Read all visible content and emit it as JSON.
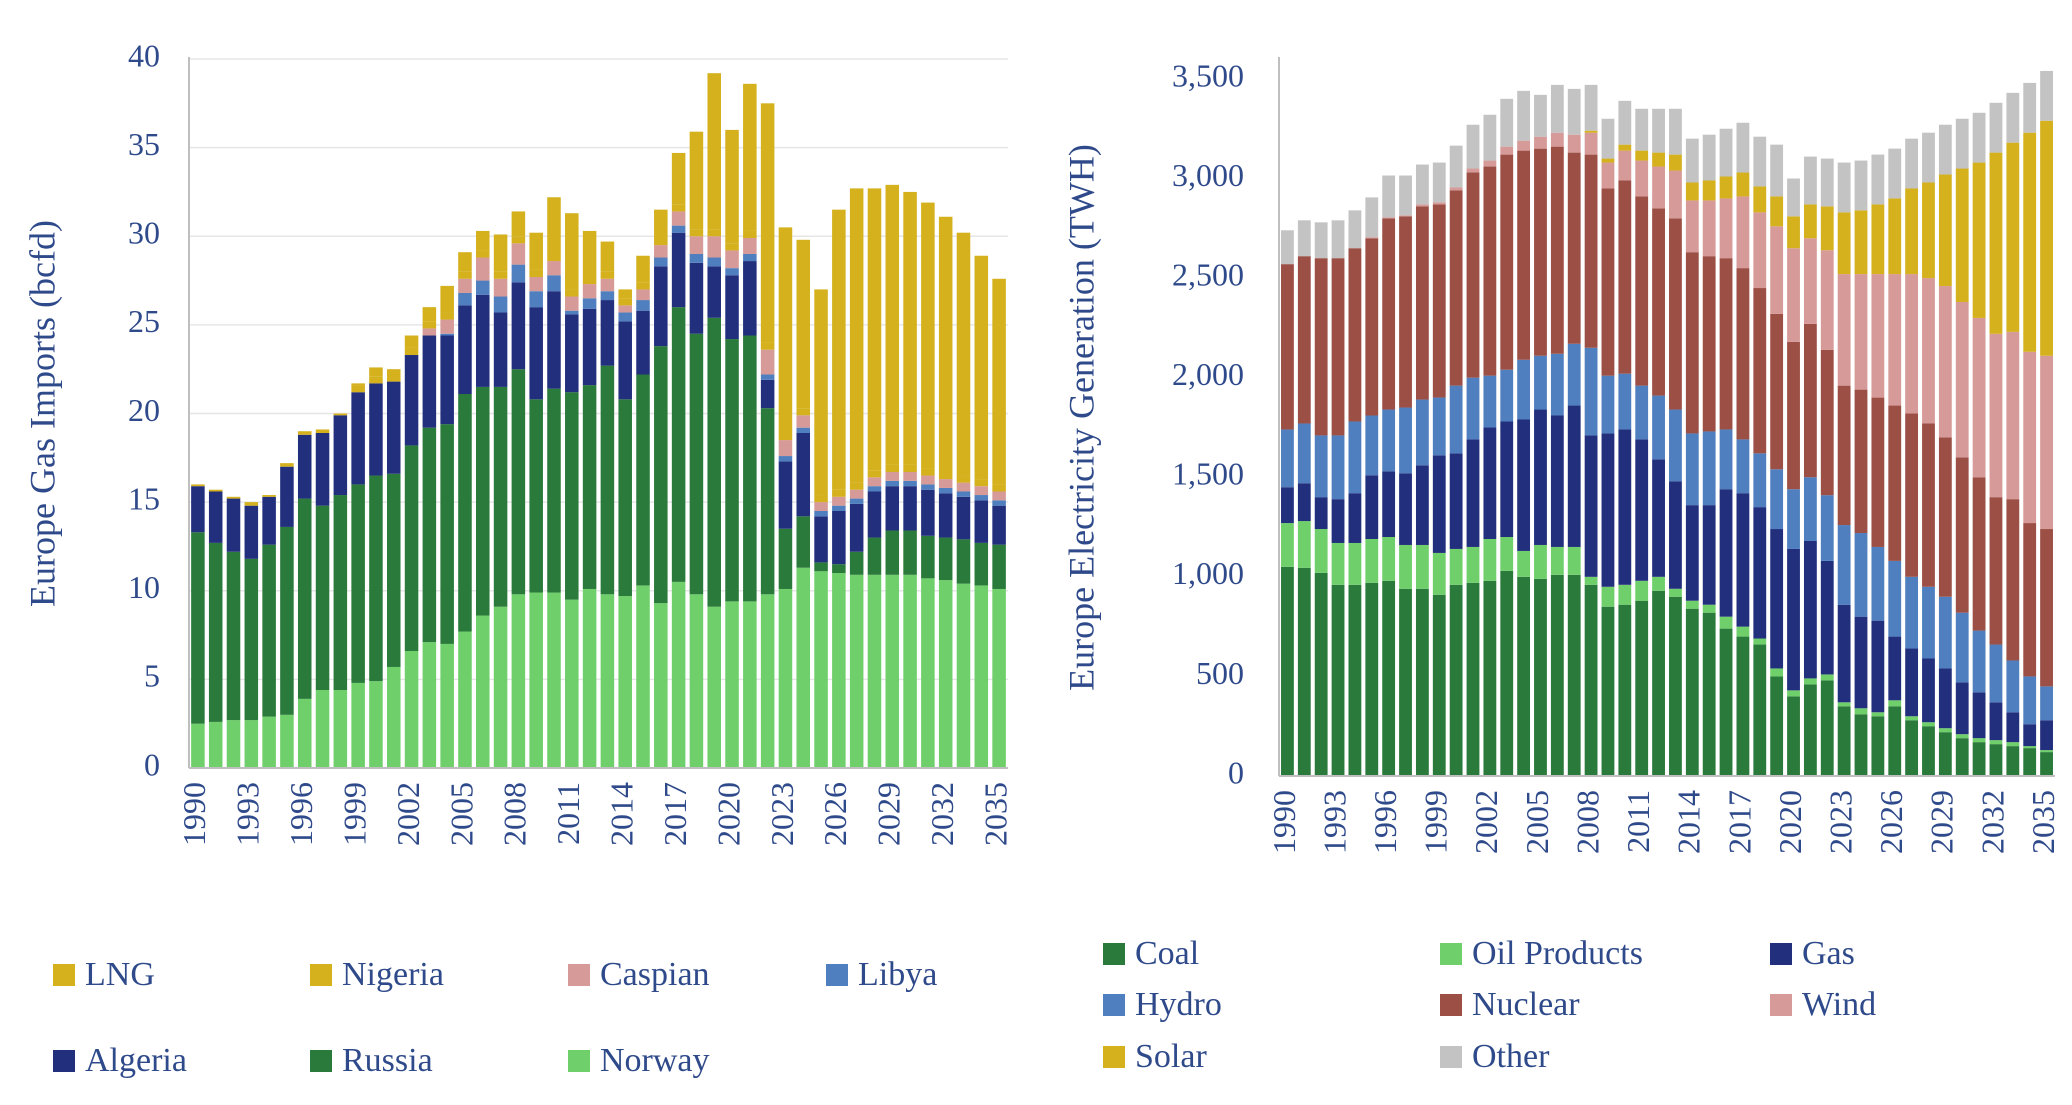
{
  "chart_data": [
    {
      "type": "bar",
      "stacked": true,
      "y_label": "Europe Gas Imports (bcfd)",
      "categories": [
        "1990",
        null,
        null,
        "1993",
        null,
        null,
        "1996",
        null,
        null,
        "1999",
        null,
        null,
        "2002",
        null,
        null,
        "2005",
        null,
        null,
        "2008",
        null,
        null,
        "2011",
        null,
        null,
        "2014",
        null,
        null,
        "2017",
        null,
        null,
        "2020",
        null,
        null,
        "2023",
        null,
        null,
        "2026",
        null,
        null,
        "2029",
        null,
        null,
        "2032",
        null,
        null,
        "2035"
      ],
      "ylim": [
        0,
        40
      ],
      "yticks": [
        0,
        5,
        10,
        15,
        20,
        25,
        30,
        35,
        40
      ],
      "grid": true,
      "legend": "bottom",
      "series": [
        {
          "name": "Norway",
          "color": "#6fcf6a",
          "values": [
            2.5,
            2.6,
            2.7,
            2.7,
            2.9,
            3.0,
            3.9,
            4.4,
            4.4,
            4.8,
            4.9,
            5.7,
            6.6,
            7.1,
            7.0,
            7.7,
            8.6,
            9.1,
            9.8,
            9.9,
            9.9,
            9.5,
            10.1,
            9.8,
            9.7,
            10.3,
            9.3,
            10.5,
            9.8,
            9.1,
            9.4,
            9.4,
            9.8,
            10.1,
            11.3,
            11.1,
            11.0,
            10.9,
            10.9,
            10.9,
            10.9,
            10.7,
            10.6,
            10.4,
            10.3,
            10.1
          ]
        },
        {
          "name": "Russia",
          "color": "#2a7a3b",
          "values": [
            10.8,
            10.1,
            9.5,
            9.1,
            9.7,
            10.6,
            11.3,
            10.4,
            11.0,
            11.2,
            11.6,
            10.9,
            11.6,
            12.1,
            12.4,
            13.4,
            12.9,
            12.4,
            12.7,
            10.9,
            11.5,
            11.7,
            11.5,
            12.9,
            11.1,
            11.9,
            14.5,
            15.5,
            14.7,
            16.3,
            14.8,
            15.0,
            10.5,
            3.4,
            2.9,
            0.5,
            0.5,
            1.3,
            2.1,
            2.5,
            2.5,
            2.4,
            2.4,
            2.5,
            2.4,
            2.5
          ]
        },
        {
          "name": "Algeria",
          "color": "#222f7d",
          "values": [
            2.6,
            2.9,
            3.0,
            3.0,
            2.7,
            3.4,
            3.6,
            4.1,
            4.5,
            5.2,
            5.2,
            5.2,
            5.1,
            5.2,
            5.0,
            5.0,
            5.2,
            4.2,
            4.9,
            5.2,
            5.5,
            4.4,
            4.3,
            3.7,
            4.4,
            3.6,
            4.5,
            4.2,
            4.0,
            2.9,
            3.6,
            4.2,
            1.6,
            3.8,
            4.7,
            2.6,
            3.0,
            2.7,
            2.6,
            2.5,
            2.5,
            2.6,
            2.5,
            2.4,
            2.4,
            2.2
          ]
        },
        {
          "name": "Libya",
          "color": "#4f7fbf",
          "values": [
            0,
            0,
            0,
            0,
            0,
            0,
            0,
            0,
            0,
            0,
            0,
            0,
            0,
            0,
            0.1,
            0.7,
            0.8,
            0.9,
            1.0,
            0.9,
            0.9,
            0.2,
            0.6,
            0.5,
            0.5,
            0.6,
            0.5,
            0.4,
            0.5,
            0.5,
            0.4,
            0.4,
            0.3,
            0.3,
            0.3,
            0.3,
            0.3,
            0.3,
            0.3,
            0.3,
            0.3,
            0.3,
            0.3,
            0.3,
            0.3,
            0.3
          ]
        },
        {
          "name": "Caspian",
          "color": "#d69a98",
          "values": [
            0,
            0,
            0,
            0,
            0,
            0,
            0,
            0,
            0,
            0,
            0,
            0,
            0,
            0.4,
            0.8,
            0.8,
            1.3,
            1.0,
            1.2,
            0.8,
            0.8,
            0.8,
            0.8,
            0.7,
            0.4,
            0.6,
            0.7,
            0.8,
            1.0,
            1.2,
            1.0,
            0.9,
            1.4,
            0.9,
            0.7,
            0.5,
            0.5,
            0.5,
            0.5,
            0.5,
            0.5,
            0.5,
            0.5,
            0.5,
            0.5,
            0.5
          ]
        },
        {
          "name": "Nigeria",
          "color": "#d4b11d",
          "values": [
            0,
            0,
            0,
            0,
            0,
            0,
            0,
            0,
            0,
            0.4,
            0.4,
            0.4,
            0.4,
            0.4,
            0.4,
            0.4,
            0.4,
            0.4,
            0.4,
            0.4,
            0.4,
            0.4,
            0.4,
            0.4,
            0.4,
            0.4,
            0.4,
            0.4,
            0.4,
            0.4,
            0.4,
            0.4,
            0.4,
            0.4,
            0.4,
            0.4,
            0.4,
            0.4,
            0.4,
            0.4,
            0.4,
            0.4,
            0.4,
            0.4,
            0.4,
            0.4
          ]
        },
        {
          "name": "LNG",
          "color": "#d4b11d",
          "values": [
            0.1,
            0.1,
            0.1,
            0.2,
            0.1,
            0.2,
            0.2,
            0.2,
            0.1,
            0.1,
            0.5,
            0.3,
            0.7,
            0.8,
            1.5,
            1.1,
            1.1,
            2.1,
            1.4,
            2.1,
            3.2,
            4.3,
            2.6,
            1.7,
            0.5,
            1.5,
            1.6,
            2.9,
            5.5,
            8.8,
            6.4,
            8.3,
            13.5,
            11.6,
            9.5,
            11.6,
            15.8,
            16.6,
            15.9,
            15.8,
            15.4,
            15.0,
            14.4,
            13.7,
            12.6,
            11.6
          ]
        }
      ]
    },
    {
      "type": "bar",
      "stacked": true,
      "y_label": "Europe Electricity Generation (TWH)",
      "categories": [
        "1990",
        null,
        null,
        "1993",
        null,
        null,
        "1996",
        null,
        null,
        "1999",
        null,
        null,
        "2002",
        null,
        null,
        "2005",
        null,
        null,
        "2008",
        null,
        null,
        "2011",
        null,
        null,
        "2014",
        null,
        null,
        "2017",
        null,
        null,
        "2020",
        null,
        null,
        "2023",
        null,
        null,
        "2026",
        null,
        null,
        "2029",
        null,
        null,
        "2032",
        null,
        null,
        "2035"
      ],
      "ylim": [
        0,
        3600
      ],
      "yticks": [
        0,
        500,
        {
          "value": 1000,
          "label": "1,000"
        },
        {
          "value": 1500,
          "label": "1,500"
        },
        {
          "value": 2000,
          "label": "2,000"
        },
        {
          "value": 2500,
          "label": "2,500"
        },
        {
          "value": 3000,
          "label": "3,000"
        },
        {
          "value": 3500,
          "label": "3,500"
        }
      ],
      "grid": false,
      "legend": "bottom",
      "series": [
        {
          "name": "Coal",
          "color": "#2a7a3b",
          "values": [
            1050,
            1045,
            1020,
            960,
            960,
            970,
            980,
            940,
            940,
            910,
            960,
            970,
            980,
            1030,
            1000,
            990,
            1010,
            1010,
            960,
            850,
            860,
            880,
            930,
            900,
            840,
            820,
            740,
            700,
            660,
            500,
            400,
            460,
            480,
            350,
            310,
            300,
            350,
            280,
            250,
            220,
            190,
            170,
            160,
            150,
            140,
            120
          ]
        },
        {
          "name": "Oil Products",
          "color": "#6fcf6a",
          "values": [
            220,
            235,
            220,
            210,
            210,
            220,
            220,
            220,
            220,
            210,
            180,
            180,
            210,
            170,
            130,
            170,
            140,
            140,
            40,
            100,
            100,
            100,
            70,
            40,
            40,
            40,
            60,
            50,
            30,
            40,
            30,
            30,
            30,
            20,
            30,
            20,
            30,
            20,
            20,
            20,
            20,
            20,
            20,
            20,
            10,
            10
          ]
        },
        {
          "name": "Gas",
          "color": "#222f7d",
          "values": [
            180,
            190,
            160,
            220,
            250,
            320,
            330,
            360,
            400,
            490,
            480,
            540,
            560,
            580,
            660,
            680,
            660,
            710,
            710,
            770,
            780,
            710,
            590,
            540,
            480,
            500,
            640,
            670,
            660,
            700,
            710,
            690,
            570,
            490,
            460,
            460,
            320,
            340,
            320,
            300,
            260,
            230,
            190,
            150,
            110,
            150
          ]
        },
        {
          "name": "Hydro",
          "color": "#4f7fbf",
          "values": [
            290,
            300,
            310,
            320,
            360,
            300,
            310,
            330,
            330,
            290,
            340,
            310,
            260,
            260,
            300,
            270,
            310,
            310,
            440,
            290,
            280,
            270,
            320,
            360,
            360,
            370,
            300,
            270,
            270,
            300,
            300,
            320,
            330,
            400,
            420,
            370,
            380,
            360,
            360,
            360,
            350,
            310,
            290,
            260,
            240,
            170
          ]
        },
        {
          "name": "Nuclear",
          "color": "#9c4f45",
          "values": [
            830,
            840,
            890,
            890,
            870,
            890,
            960,
            960,
            970,
            970,
            980,
            1030,
            1050,
            1080,
            1050,
            1040,
            1040,
            960,
            970,
            940,
            970,
            950,
            940,
            960,
            910,
            880,
            860,
            860,
            830,
            780,
            740,
            770,
            730,
            700,
            720,
            750,
            780,
            820,
            820,
            800,
            780,
            770,
            740,
            810,
            770,
            790
          ]
        },
        {
          "name": "Wind",
          "color": "#d69a98",
          "values": [
            0,
            0,
            0,
            0,
            0,
            5,
            5,
            5,
            10,
            10,
            15,
            20,
            30,
            40,
            50,
            60,
            70,
            90,
            110,
            130,
            150,
            180,
            210,
            240,
            260,
            280,
            300,
            360,
            380,
            440,
            470,
            430,
            500,
            560,
            580,
            620,
            660,
            700,
            730,
            760,
            780,
            800,
            820,
            840,
            860,
            870
          ]
        },
        {
          "name": "Solar",
          "color": "#d4b11d",
          "values": [
            0,
            0,
            0,
            0,
            0,
            0,
            0,
            0,
            0,
            0,
            0,
            0,
            0,
            0,
            0,
            0,
            0,
            0,
            10,
            20,
            30,
            50,
            70,
            80,
            90,
            100,
            110,
            120,
            130,
            150,
            160,
            170,
            220,
            310,
            320,
            350,
            380,
            430,
            480,
            560,
            670,
            780,
            910,
            950,
            1100,
            1180
          ]
        },
        {
          "name": "Other",
          "color": "#c3c3c3",
          "values": [
            170,
            180,
            180,
            190,
            190,
            200,
            210,
            200,
            200,
            200,
            210,
            220,
            230,
            240,
            250,
            210,
            240,
            230,
            230,
            200,
            220,
            210,
            220,
            230,
            220,
            230,
            240,
            250,
            250,
            260,
            190,
            240,
            240,
            250,
            250,
            250,
            250,
            250,
            250,
            250,
            250,
            250,
            250,
            250,
            250,
            250
          ]
        }
      ]
    }
  ]
}
